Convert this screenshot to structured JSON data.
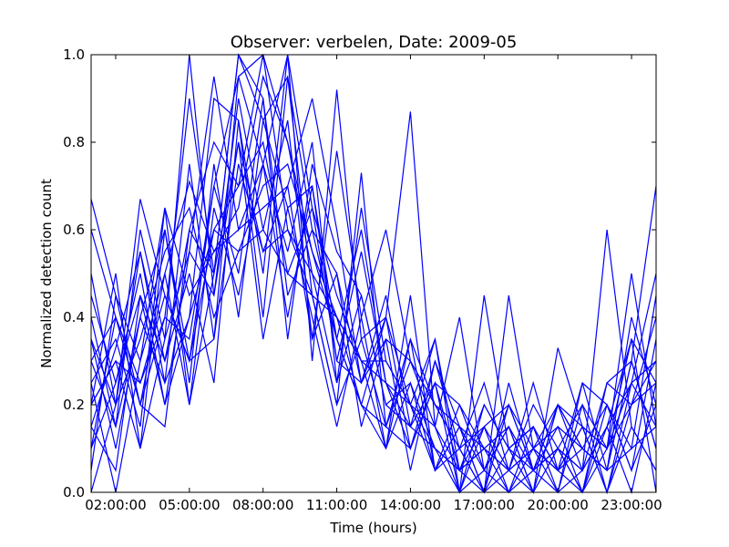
{
  "chart_data": {
    "type": "line",
    "title": "Observer: verbelen, Date: 2009-05",
    "xlabel": "Time (hours)",
    "ylabel": "Normalized detection count",
    "xlim": [
      1,
      24
    ],
    "ylim": [
      0.0,
      1.0
    ],
    "x_ticks": [
      {
        "value": 2,
        "label": "02:00:00"
      },
      {
        "value": 5,
        "label": "05:00:00"
      },
      {
        "value": 8,
        "label": "08:00:00"
      },
      {
        "value": 11,
        "label": "11:00:00"
      },
      {
        "value": 14,
        "label": "14:00:00"
      },
      {
        "value": 17,
        "label": "17:00:00"
      },
      {
        "value": 20,
        "label": "20:00:00"
      },
      {
        "value": 23,
        "label": "23:00:00"
      }
    ],
    "y_ticks": [
      {
        "value": 0.0,
        "label": "0.0"
      },
      {
        "value": 0.2,
        "label": "0.2"
      },
      {
        "value": 0.4,
        "label": "0.4"
      },
      {
        "value": 0.6,
        "label": "0.6"
      },
      {
        "value": 0.8,
        "label": "0.8"
      },
      {
        "value": 1.0,
        "label": "1.0"
      }
    ],
    "grid": false,
    "legend": "none",
    "series_color": "#0000ff",
    "x": [
      1,
      2,
      3,
      4,
      5,
      6,
      7,
      8,
      9,
      10,
      11,
      12,
      13,
      14,
      15,
      16,
      17,
      18,
      19,
      20,
      21,
      22,
      23,
      24
    ],
    "series": [
      {
        "values": [
          0.67,
          0.45,
          0.2,
          0.4,
          0.9,
          0.5,
          1.0,
          0.85,
          0.95,
          0.6,
          0.35,
          0.2,
          0.1,
          0.25,
          0.05,
          0.15,
          0.0,
          0.1,
          0.05,
          0.2,
          0.1,
          0.05,
          0.3,
          0.7
        ]
      },
      {
        "values": [
          0.2,
          0.5,
          0.1,
          0.6,
          0.3,
          0.7,
          0.95,
          1.0,
          0.8,
          0.55,
          0.4,
          0.3,
          0.25,
          0.15,
          0.35,
          0.0,
          0.45,
          0.1,
          0.0,
          0.33,
          0.15,
          0.0,
          0.25,
          0.5
        ]
      },
      {
        "values": [
          0.1,
          0.25,
          0.45,
          0.2,
          0.55,
          0.95,
          0.6,
          0.75,
          1.0,
          0.65,
          0.3,
          0.25,
          0.4,
          0.2,
          0.1,
          0.05,
          0.15,
          0.05,
          0.1,
          0.0,
          0.2,
          0.1,
          0.5,
          0.15
        ]
      },
      {
        "values": [
          0.4,
          0.15,
          0.6,
          0.35,
          1.0,
          0.45,
          0.8,
          0.55,
          0.7,
          0.9,
          0.6,
          0.25,
          0.35,
          0.3,
          0.2,
          0.1,
          0.0,
          0.2,
          0.05,
          0.1,
          0.0,
          0.15,
          0.35,
          0.25
        ]
      },
      {
        "values": [
          0.25,
          0.0,
          0.3,
          0.65,
          0.2,
          0.5,
          1.0,
          0.9,
          0.35,
          0.75,
          0.55,
          0.45,
          0.2,
          0.15,
          0.25,
          0.05,
          0.1,
          0.0,
          0.15,
          0.05,
          0.25,
          0.2,
          0.1,
          0.45
        ]
      },
      {
        "values": [
          0.3,
          0.4,
          0.2,
          0.15,
          0.6,
          0.8,
          0.7,
          1.0,
          0.6,
          0.45,
          0.2,
          0.73,
          0.15,
          0.1,
          0.3,
          0.15,
          0.05,
          0.15,
          0.0,
          0.2,
          0.05,
          0.25,
          0.3,
          0.1
        ]
      },
      {
        "values": [
          0.15,
          0.33,
          0.55,
          0.25,
          0.4,
          0.9,
          0.85,
          0.5,
          1.0,
          0.3,
          0.92,
          0.35,
          0.4,
          0.87,
          0.15,
          0.05,
          0.0,
          0.45,
          0.1,
          0.05,
          0.15,
          0.0,
          0.2,
          0.3
        ]
      },
      {
        "values": [
          0.5,
          0.2,
          0.67,
          0.45,
          0.3,
          0.35,
          0.95,
          0.75,
          0.55,
          0.8,
          0.25,
          0.65,
          0.3,
          0.2,
          0.05,
          0.2,
          0.1,
          0.05,
          0.2,
          0.1,
          0.05,
          0.6,
          0.15,
          0.05
        ]
      },
      {
        "values": [
          0.05,
          0.45,
          0.3,
          0.5,
          0.71,
          0.55,
          0.65,
          0.95,
          0.8,
          0.5,
          0.4,
          0.2,
          0.15,
          0.35,
          0.2,
          0.1,
          0.0,
          0.25,
          0.05,
          0.15,
          0.1,
          0.05,
          0.4,
          0.2
        ]
      },
      {
        "values": [
          0.35,
          0.1,
          0.4,
          0.6,
          0.25,
          0.75,
          0.4,
          0.85,
          0.65,
          0.7,
          0.3,
          0.55,
          0.25,
          0.1,
          0.25,
          0.0,
          0.2,
          0.1,
          0.15,
          0.05,
          0.0,
          0.2,
          0.05,
          0.35
        ]
      },
      {
        "values": [
          0.2,
          0.3,
          0.1,
          0.35,
          0.55,
          0.45,
          0.9,
          0.6,
          0.85,
          0.35,
          0.78,
          0.4,
          0.6,
          0.3,
          0.15,
          0.4,
          0.05,
          0.0,
          0.1,
          0.2,
          0.15,
          0.1,
          0.25,
          0.15
        ]
      },
      {
        "values": [
          0.45,
          0.25,
          0.5,
          0.2,
          0.4,
          0.6,
          0.7,
          0.8,
          0.5,
          0.65,
          0.45,
          0.3,
          0.1,
          0.45,
          0.05,
          0.1,
          0.25,
          0.05,
          0.0,
          0.1,
          0.05,
          0.15,
          0.0,
          0.25
        ]
      },
      {
        "values": [
          0.0,
          0.2,
          0.35,
          0.55,
          0.65,
          0.4,
          0.55,
          0.7,
          0.75,
          0.55,
          0.35,
          0.6,
          0.25,
          0.2,
          0.35,
          0.05,
          0.1,
          0.15,
          0.05,
          0.0,
          0.25,
          0.05,
          0.3,
          0.1
        ]
      },
      {
        "values": [
          0.6,
          0.4,
          0.25,
          0.4,
          0.35,
          0.7,
          0.5,
          0.9,
          0.45,
          0.6,
          0.5,
          0.25,
          0.45,
          0.15,
          0.1,
          0.0,
          0.05,
          0.2,
          0.1,
          0.15,
          0.0,
          0.1,
          0.2,
          0.4
        ]
      },
      {
        "values": [
          0.15,
          0.05,
          0.45,
          0.3,
          0.5,
          0.25,
          0.85,
          0.4,
          0.95,
          0.45,
          0.2,
          0.35,
          0.15,
          0.3,
          0.2,
          0.15,
          0.0,
          0.05,
          0.25,
          0.05,
          0.1,
          0.2,
          0.05,
          0.2
        ]
      },
      {
        "values": [
          0.25,
          0.35,
          0.15,
          0.65,
          0.45,
          0.55,
          0.6,
          0.65,
          0.7,
          0.35,
          0.5,
          0.15,
          0.35,
          0.05,
          0.3,
          0.1,
          0.15,
          0.0,
          0.05,
          0.1,
          0.2,
          0.0,
          0.15,
          0.05
        ]
      },
      {
        "values": [
          0.3,
          0.15,
          0.4,
          0.25,
          0.75,
          0.35,
          0.75,
          0.55,
          0.6,
          0.5,
          0.25,
          0.45,
          0.2,
          0.25,
          0.1,
          0.05,
          0.2,
          0.1,
          0.15,
          0.0,
          0.05,
          0.15,
          0.25,
          0.3
        ]
      },
      {
        "values": [
          0.1,
          0.4,
          0.2,
          0.5,
          0.2,
          0.65,
          0.45,
          0.75,
          0.4,
          0.7,
          0.35,
          0.2,
          0.4,
          0.1,
          0.25,
          0.2,
          0.05,
          0.15,
          0.0,
          0.2,
          0.1,
          0.05,
          0.1,
          0.15
        ]
      },
      {
        "values": [
          0.35,
          0.2,
          0.55,
          0.3,
          0.6,
          0.5,
          0.8,
          0.35,
          0.65,
          0.4,
          0.15,
          0.4,
          0.1,
          0.35,
          0.05,
          0.15,
          0.1,
          0.05,
          0.1,
          0.05,
          0.15,
          0.1,
          0.35,
          0.0
        ]
      },
      {
        "values": [
          0.2,
          0.3,
          0.25,
          0.45,
          0.3,
          0.6,
          0.55,
          0.6,
          0.5,
          0.45,
          0.4,
          0.3,
          0.3,
          0.2,
          0.15,
          0.0,
          0.15,
          0.2,
          0.05,
          0.1,
          0.0,
          0.25,
          0.2,
          0.25
        ]
      }
    ]
  }
}
